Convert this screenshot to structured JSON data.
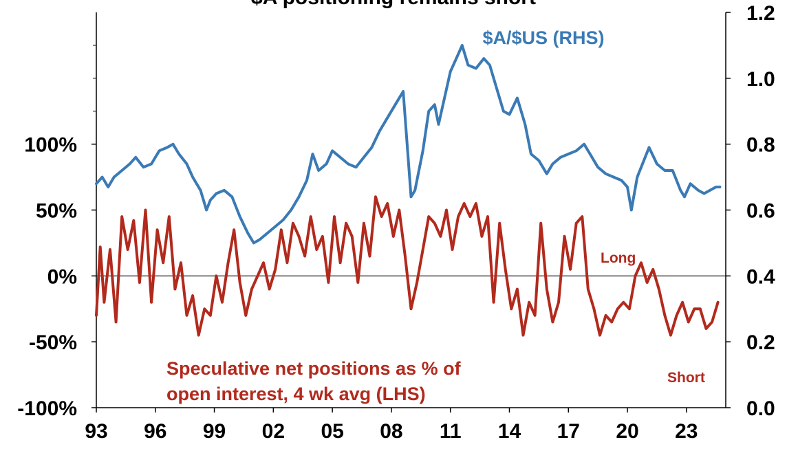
{
  "chart_data": {
    "type": "line",
    "title": "$A positioning remains short",
    "x_ticks": [
      "93",
      "96",
      "99",
      "02",
      "05",
      "08",
      "11",
      "14",
      "17",
      "20",
      "23"
    ],
    "xlim": [
      1993.0,
      2025.0
    ],
    "left_axis": {
      "ticks": [
        "-100%",
        "-50%",
        "0%",
        "50%",
        "100%"
      ],
      "tick_values": [
        -100,
        -50,
        0,
        50,
        100
      ],
      "range": [
        -100,
        200
      ]
    },
    "right_axis": {
      "ticks": [
        "0.0",
        "0.2",
        "0.4",
        "0.6",
        "0.8",
        "1.0",
        "1.2"
      ],
      "tick_values": [
        0.0,
        0.2,
        0.4,
        0.6,
        0.8,
        1.0,
        1.2
      ],
      "range": [
        0.0,
        1.2
      ]
    },
    "series": [
      {
        "name": "$A/$US (RHS)",
        "axis": "right",
        "color": "#3a7ab5",
        "x": [
          1993.0,
          1993.3,
          1993.6,
          1993.9,
          1994.3,
          1994.7,
          1995.0,
          1995.4,
          1995.8,
          1996.2,
          1996.6,
          1996.9,
          1997.2,
          1997.6,
          1997.9,
          1998.3,
          1998.6,
          1998.8,
          1999.1,
          1999.5,
          1999.9,
          2000.3,
          2000.7,
          2001.0,
          2001.3,
          2001.7,
          2002.1,
          2002.5,
          2002.9,
          2003.3,
          2003.7,
          2004.0,
          2004.3,
          2004.7,
          2005.0,
          2005.4,
          2005.8,
          2006.2,
          2006.6,
          2007.0,
          2007.4,
          2007.8,
          2008.2,
          2008.6,
          2008.8,
          2009.0,
          2009.2,
          2009.6,
          2009.9,
          2010.2,
          2010.4,
          2010.7,
          2011.0,
          2011.3,
          2011.6,
          2011.9,
          2012.3,
          2012.7,
          2013.0,
          2013.4,
          2013.7,
          2014.0,
          2014.4,
          2014.8,
          2015.1,
          2015.5,
          2015.9,
          2016.2,
          2016.6,
          2017.0,
          2017.4,
          2017.8,
          2018.1,
          2018.5,
          2018.9,
          2019.3,
          2019.7,
          2020.0,
          2020.2,
          2020.5,
          2020.9,
          2021.1,
          2021.5,
          2021.9,
          2022.3,
          2022.7,
          2022.9,
          2023.2,
          2023.6,
          2023.9,
          2024.2,
          2024.5,
          2024.7
        ],
        "values": [
          0.68,
          0.7,
          0.67,
          0.7,
          0.72,
          0.74,
          0.76,
          0.73,
          0.74,
          0.78,
          0.79,
          0.8,
          0.77,
          0.74,
          0.7,
          0.66,
          0.6,
          0.63,
          0.65,
          0.66,
          0.64,
          0.58,
          0.53,
          0.5,
          0.51,
          0.53,
          0.55,
          0.57,
          0.6,
          0.64,
          0.69,
          0.77,
          0.72,
          0.74,
          0.78,
          0.76,
          0.74,
          0.73,
          0.76,
          0.79,
          0.84,
          0.88,
          0.92,
          0.96,
          0.8,
          0.64,
          0.66,
          0.78,
          0.9,
          0.92,
          0.86,
          0.94,
          1.02,
          1.06,
          1.1,
          1.04,
          1.03,
          1.06,
          1.04,
          0.96,
          0.9,
          0.89,
          0.94,
          0.86,
          0.77,
          0.75,
          0.71,
          0.74,
          0.76,
          0.77,
          0.78,
          0.8,
          0.77,
          0.73,
          0.71,
          0.7,
          0.69,
          0.67,
          0.6,
          0.7,
          0.76,
          0.79,
          0.74,
          0.72,
          0.72,
          0.66,
          0.64,
          0.68,
          0.66,
          0.65,
          0.66,
          0.67,
          0.67
        ]
      },
      {
        "name": "Speculative net positions as % of open interest, 4 wk avg (LHS)",
        "axis": "left",
        "color": "#b22a1d",
        "x": [
          1993.0,
          1993.2,
          1993.4,
          1993.7,
          1994.0,
          1994.3,
          1994.6,
          1994.9,
          1995.2,
          1995.5,
          1995.8,
          1996.1,
          1996.4,
          1996.7,
          1997.0,
          1997.3,
          1997.6,
          1997.9,
          1998.2,
          1998.5,
          1998.8,
          1999.1,
          1999.4,
          1999.7,
          2000.0,
          2000.3,
          2000.6,
          2000.9,
          2001.2,
          2001.5,
          2001.8,
          2002.1,
          2002.4,
          2002.7,
          2003.0,
          2003.3,
          2003.6,
          2003.9,
          2004.2,
          2004.5,
          2004.8,
          2005.1,
          2005.4,
          2005.7,
          2006.0,
          2006.3,
          2006.6,
          2006.9,
          2007.2,
          2007.5,
          2007.8,
          2008.1,
          2008.4,
          2008.7,
          2009.0,
          2009.3,
          2009.6,
          2009.9,
          2010.2,
          2010.5,
          2010.8,
          2011.1,
          2011.4,
          2011.7,
          2012.0,
          2012.3,
          2012.6,
          2012.9,
          2013.2,
          2013.5,
          2013.8,
          2014.1,
          2014.4,
          2014.7,
          2015.0,
          2015.3,
          2015.6,
          2015.9,
          2016.2,
          2016.5,
          2016.8,
          2017.1,
          2017.4,
          2017.7,
          2018.0,
          2018.3,
          2018.6,
          2018.9,
          2019.2,
          2019.5,
          2019.8,
          2020.1,
          2020.4,
          2020.7,
          2021.0,
          2021.3,
          2021.6,
          2021.9,
          2022.2,
          2022.5,
          2022.8,
          2023.1,
          2023.4,
          2023.7,
          2024.0,
          2024.3,
          2024.6
        ],
        "values": [
          -30,
          22,
          -20,
          20,
          -35,
          45,
          20,
          42,
          -5,
          50,
          -20,
          35,
          10,
          45,
          -10,
          10,
          -30,
          -15,
          -45,
          -25,
          -30,
          0,
          -20,
          10,
          35,
          -5,
          -30,
          -10,
          0,
          10,
          -10,
          5,
          35,
          10,
          40,
          30,
          15,
          45,
          20,
          30,
          -5,
          45,
          10,
          40,
          30,
          -5,
          40,
          15,
          60,
          45,
          55,
          30,
          50,
          15,
          -25,
          -5,
          20,
          45,
          40,
          30,
          50,
          20,
          45,
          55,
          45,
          55,
          30,
          45,
          -20,
          40,
          5,
          -25,
          -10,
          -45,
          -20,
          -30,
          40,
          -10,
          -35,
          -20,
          30,
          5,
          40,
          45,
          -10,
          -25,
          -45,
          -30,
          -35,
          -25,
          -20,
          -25,
          0,
          10,
          -5,
          5,
          -10,
          -30,
          -45,
          -30,
          -20,
          -35,
          -25,
          -25,
          -40,
          -35,
          -20
        ]
      }
    ],
    "annotations": {
      "fx_label": "$A/$US (RHS)",
      "pos_label_line1": "Speculative net positions as % of",
      "pos_label_line2": "open interest, 4 wk avg (LHS)",
      "long_label": "Long",
      "short_label": "Short"
    },
    "zero_line": true,
    "grid": false,
    "legend": "none"
  }
}
